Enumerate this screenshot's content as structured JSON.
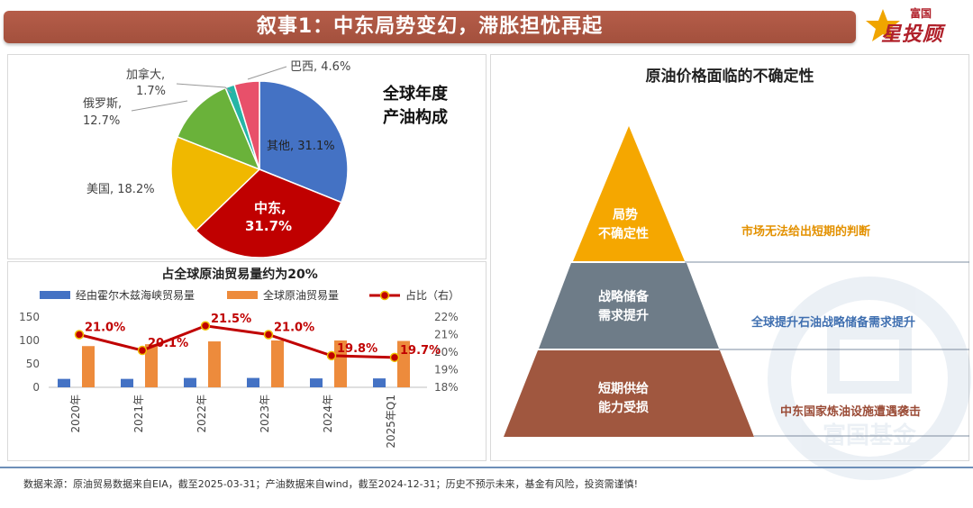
{
  "header": {
    "title": "叙事1：中东局势变幻，滞胀担忧再起",
    "logo_small": "富国",
    "logo_big": "星投顾"
  },
  "pie": {
    "heading_line1": "全球年度",
    "heading_line2": "产油构成",
    "labels": {
      "other": "其他, 31.1%",
      "mideast_line1": "中东,",
      "mideast_line2": "31.7%",
      "usa": "美国, 18.2%",
      "russia_line1": "俄罗斯,",
      "russia_line2": "12.7%",
      "canada_line1": "加拿大,",
      "canada_line2": "1.7%",
      "brazil": "巴西, 4.6%"
    }
  },
  "combo": {
    "title": "占全球原油贸易量约为20%"
  },
  "pyramid": {
    "title": "原油价格面临的不确定性",
    "tiers": [
      {
        "line1": "局势",
        "line2": "不确定性",
        "color": "#f5a700"
      },
      {
        "line1": "战略储备",
        "line2": "需求提升",
        "color": "#6e7c88"
      },
      {
        "line1": "短期供给",
        "line2": "能力受损",
        "color": "#a0573f"
      }
    ],
    "side_labels": [
      {
        "text": "市场无法给出短期的判断",
        "color": "#e39100"
      },
      {
        "text": "全球提升石油战略储备需求提升",
        "color": "#3f6fb0"
      },
      {
        "text": "中东国家炼油设施遭遇袭击",
        "color": "#9a4b36"
      }
    ],
    "watermark": "富国基金"
  },
  "footer": {
    "text": "数据来源：原油贸易数据来自EIA，截至2025-03-31；产油数据来自wind，截至2024-12-31；历史不预示未来，基金有风险，投资需谨慎!"
  },
  "chart_data": [
    {
      "type": "pie",
      "title": "全球年度产油构成",
      "slices": [
        {
          "name": "其他",
          "value": 31.1,
          "color": "#4472c4"
        },
        {
          "name": "中东",
          "value": 31.7,
          "color": "#c00000"
        },
        {
          "name": "美国",
          "value": 18.2,
          "color": "#f0b800"
        },
        {
          "name": "俄罗斯",
          "value": 12.7,
          "color": "#6ab23a"
        },
        {
          "name": "加拿大",
          "value": 1.7,
          "color": "#26b5a6"
        },
        {
          "name": "巴西",
          "value": 4.6,
          "color": "#e8506a"
        }
      ]
    },
    {
      "type": "bar",
      "title": "占全球原油贸易量约为20%",
      "categories": [
        "2020年",
        "2021年",
        "2022年",
        "2023年",
        "2024年",
        "2025年Q1"
      ],
      "series": [
        {
          "name": "经由霍尔木兹海峡贸易量",
          "kind": "bar",
          "axis": "left",
          "color": "#4472c4",
          "values": [
            18,
            18,
            20,
            20,
            19,
            19
          ]
        },
        {
          "name": "全球原油贸易量",
          "kind": "bar",
          "axis": "left",
          "color": "#ed8b3c",
          "values": [
            88,
            92,
            98,
            100,
            100,
            99
          ]
        },
        {
          "name": "占比（右）",
          "kind": "line",
          "axis": "right",
          "color": "#c00000",
          "values": [
            21.0,
            20.1,
            21.5,
            21.0,
            19.8,
            19.7
          ],
          "labels": [
            "21.0%",
            "20.1%",
            "21.5%",
            "21.0%",
            "19.8%",
            "19.7%"
          ]
        }
      ],
      "ylim_left": [
        0,
        150
      ],
      "yticks_left": [
        "0",
        "50",
        "100",
        "150"
      ],
      "ylim_right": [
        18,
        22
      ],
      "yticks_right": [
        "18%",
        "19%",
        "20%",
        "21%",
        "22%"
      ]
    }
  ]
}
